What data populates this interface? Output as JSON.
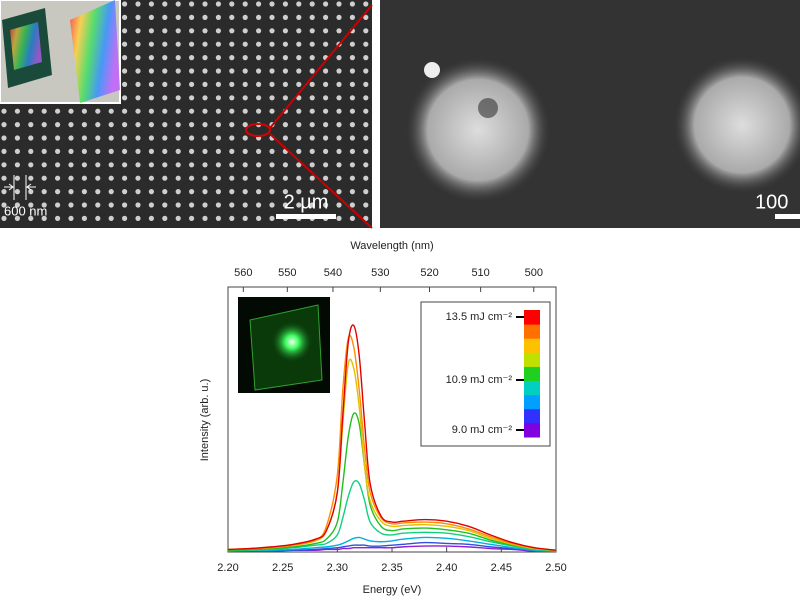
{
  "panels": {
    "sem_left": {
      "scale_bar": "2 µm",
      "pitch_label": "600 nm"
    },
    "sem_right": {
      "scale_bar": "100"
    }
  },
  "chart_data": {
    "type": "line",
    "xlabel": "Energy (eV)",
    "ylabel": "Intensity (arb. u.)",
    "x2label": "Wavelength (nm)",
    "x": [
      2.2,
      2.22,
      2.24,
      2.26,
      2.28,
      2.29,
      2.3,
      2.305,
      2.31,
      2.315,
      2.32,
      2.325,
      2.33,
      2.34,
      2.35,
      2.36,
      2.38,
      2.4,
      2.42,
      2.44,
      2.46,
      2.48,
      2.5
    ],
    "xlim": [
      2.2,
      2.5
    ],
    "xticks": [
      {
        "value": 2.2,
        "label": "2.20"
      },
      {
        "value": 2.25,
        "label": "2.25"
      },
      {
        "value": 2.3,
        "label": "2.30"
      },
      {
        "value": 2.35,
        "label": "2.35"
      },
      {
        "value": 2.4,
        "label": "2.40"
      },
      {
        "value": 2.45,
        "label": "2.45"
      },
      {
        "value": 2.5,
        "label": "2.50"
      }
    ],
    "x2ticks": [
      560,
      550,
      540,
      530,
      520,
      510,
      500
    ],
    "ylim": [
      0,
      3.1
    ],
    "series": [
      {
        "color": "#9020d0",
        "values": [
          0.01,
          0.01,
          0.01,
          0.02,
          0.02,
          0.03,
          0.03,
          0.04,
          0.04,
          0.05,
          0.05,
          0.05,
          0.05,
          0.05,
          0.05,
          0.06,
          0.07,
          0.07,
          0.06,
          0.04,
          0.03,
          0.01,
          0.01
        ]
      },
      {
        "color": "#3050e0",
        "values": [
          0.01,
          0.01,
          0.02,
          0.02,
          0.03,
          0.04,
          0.05,
          0.06,
          0.07,
          0.08,
          0.08,
          0.08,
          0.07,
          0.07,
          0.08,
          0.09,
          0.11,
          0.1,
          0.09,
          0.06,
          0.04,
          0.02,
          0.01
        ]
      },
      {
        "color": "#00b0e0",
        "values": [
          0.01,
          0.02,
          0.02,
          0.03,
          0.05,
          0.06,
          0.08,
          0.1,
          0.13,
          0.16,
          0.17,
          0.15,
          0.13,
          0.12,
          0.13,
          0.15,
          0.17,
          0.16,
          0.13,
          0.09,
          0.05,
          0.02,
          0.01
        ]
      },
      {
        "color": "#10d080",
        "values": [
          0.02,
          0.02,
          0.03,
          0.05,
          0.08,
          0.1,
          0.2,
          0.4,
          0.65,
          0.82,
          0.8,
          0.6,
          0.35,
          0.22,
          0.2,
          0.22,
          0.23,
          0.22,
          0.18,
          0.12,
          0.07,
          0.03,
          0.01
        ]
      },
      {
        "color": "#20c020",
        "values": [
          0.02,
          0.03,
          0.04,
          0.06,
          0.1,
          0.15,
          0.35,
          0.8,
          1.35,
          1.62,
          1.5,
          1.0,
          0.55,
          0.3,
          0.25,
          0.27,
          0.28,
          0.26,
          0.22,
          0.14,
          0.08,
          0.04,
          0.02
        ]
      },
      {
        "color": "#e0c000",
        "values": [
          0.03,
          0.04,
          0.05,
          0.08,
          0.13,
          0.25,
          0.7,
          1.5,
          2.2,
          2.15,
          1.7,
          1.0,
          0.6,
          0.36,
          0.3,
          0.31,
          0.32,
          0.3,
          0.25,
          0.16,
          0.09,
          0.04,
          0.02
        ]
      },
      {
        "color": "#ff8c00",
        "values": [
          0.03,
          0.04,
          0.05,
          0.08,
          0.14,
          0.3,
          0.9,
          1.9,
          2.5,
          2.4,
          1.9,
          1.2,
          0.7,
          0.4,
          0.33,
          0.34,
          0.35,
          0.33,
          0.27,
          0.18,
          0.1,
          0.05,
          0.02
        ]
      },
      {
        "color": "#e00000",
        "values": [
          0.03,
          0.04,
          0.06,
          0.09,
          0.15,
          0.25,
          0.7,
          1.6,
          2.45,
          2.65,
          2.3,
          1.5,
          0.8,
          0.42,
          0.35,
          0.36,
          0.38,
          0.36,
          0.3,
          0.2,
          0.11,
          0.05,
          0.02
        ]
      }
    ],
    "colorbar": {
      "colors": [
        "#8000e0",
        "#3030ff",
        "#00a0ff",
        "#00d0c0",
        "#20d020",
        "#c0e000",
        "#ffc000",
        "#ff7000",
        "#ff0000"
      ],
      "labels": [
        "13.5 mJ cm⁻²",
        "10.9 mJ cm⁻²",
        "9.0 mJ cm⁻²"
      ]
    }
  }
}
